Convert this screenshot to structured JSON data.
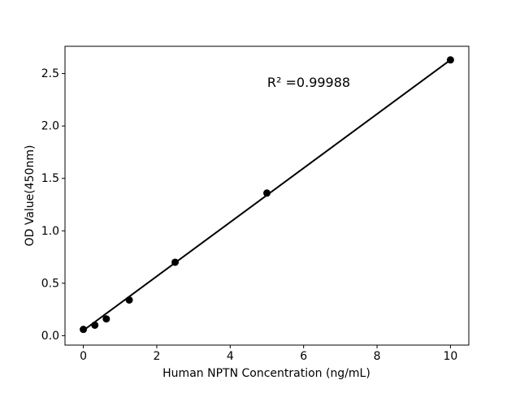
{
  "chart_data": {
    "type": "scatter",
    "title": "",
    "xlabel": "Human NPTN Concentration (ng/mL)",
    "ylabel": "OD Value(450nm)",
    "x": [
      0,
      0.3125,
      0.625,
      1.25,
      2.5,
      5,
      10
    ],
    "y": [
      0.06,
      0.1,
      0.16,
      0.34,
      0.7,
      1.36,
      2.63
    ],
    "fit_line": {
      "x": [
        0,
        10
      ],
      "y": [
        0.05,
        2.63
      ]
    },
    "annotation": {
      "text": "R² =0.99988",
      "x": 6.14,
      "y": 2.41
    },
    "xlim": [
      -0.5,
      10.5
    ],
    "ylim": [
      -0.09,
      2.76
    ],
    "xticks": [
      0,
      2,
      4,
      6,
      8,
      10
    ],
    "xtick_labels": [
      "0",
      "2",
      "4",
      "6",
      "8",
      "10"
    ],
    "yticks": [
      0.0,
      0.5,
      1.0,
      1.5,
      2.0,
      2.5
    ],
    "ytick_labels": [
      "0.0",
      "0.5",
      "1.0",
      "1.5",
      "2.0",
      "2.5"
    ],
    "grid": false,
    "legend": false,
    "background_color": "#ffffff",
    "axis_color": "#000000",
    "marker_color": "#000000",
    "line_color": "#000000"
  }
}
